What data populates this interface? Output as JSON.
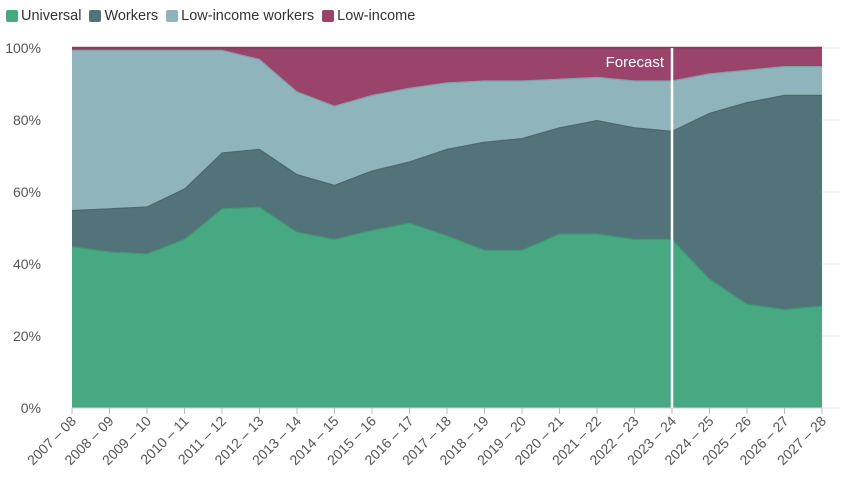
{
  "chart_data": {
    "type": "area",
    "stacked": true,
    "percent": true,
    "categories": [
      "2007 – 08",
      "2008 – 09",
      "2009 – 10",
      "2010 – 11",
      "2011 – 12",
      "2012 – 13",
      "2013 – 14",
      "2014 – 15",
      "2015 – 16",
      "2016 – 17",
      "2017 – 18",
      "2018 – 19",
      "2019 – 20",
      "2020 – 21",
      "2021 – 22",
      "2022 – 23",
      "2023 – 24",
      "2024 – 25",
      "2025 – 26",
      "2026 – 27",
      "2027 – 28"
    ],
    "series": [
      {
        "name": "Universal",
        "color": "#47a982",
        "values": [
          45,
          43.5,
          43,
          47,
          55.5,
          56,
          49,
          47,
          49.5,
          51.5,
          48,
          44,
          44,
          48.5,
          48.5,
          47,
          47,
          36,
          29,
          27.5,
          28.5
        ]
      },
      {
        "name": "Workers",
        "color": "#53737a",
        "values": [
          10,
          12,
          13,
          14,
          15.5,
          16,
          16,
          15,
          16.5,
          17,
          24,
          30,
          31,
          29.5,
          31.5,
          31,
          30,
          46,
          56,
          59.5,
          58.5
        ]
      },
      {
        "name": "Low-income workers",
        "color": "#8fb4bc",
        "values": [
          44.5,
          44,
          43.5,
          38.5,
          28.5,
          25,
          23,
          22,
          21,
          20.5,
          18.5,
          17,
          16,
          13.5,
          12,
          13,
          14,
          11,
          9,
          8,
          8
        ]
      },
      {
        "name": "Low-income",
        "color": "#9a446c",
        "values": [
          0.5,
          0.5,
          0.5,
          0.5,
          0.5,
          3,
          12,
          16,
          13,
          11,
          9.5,
          9,
          9,
          8.5,
          8,
          9,
          9,
          7,
          6,
          5,
          5
        ]
      }
    ],
    "ylim": [
      0,
      100
    ],
    "yticks": [
      "0%",
      "20%",
      "40%",
      "60%",
      "80%",
      "100%"
    ],
    "grid": true,
    "legend": "top-left",
    "annotation": {
      "label": "Forecast",
      "at_category": "2023 – 24"
    }
  }
}
